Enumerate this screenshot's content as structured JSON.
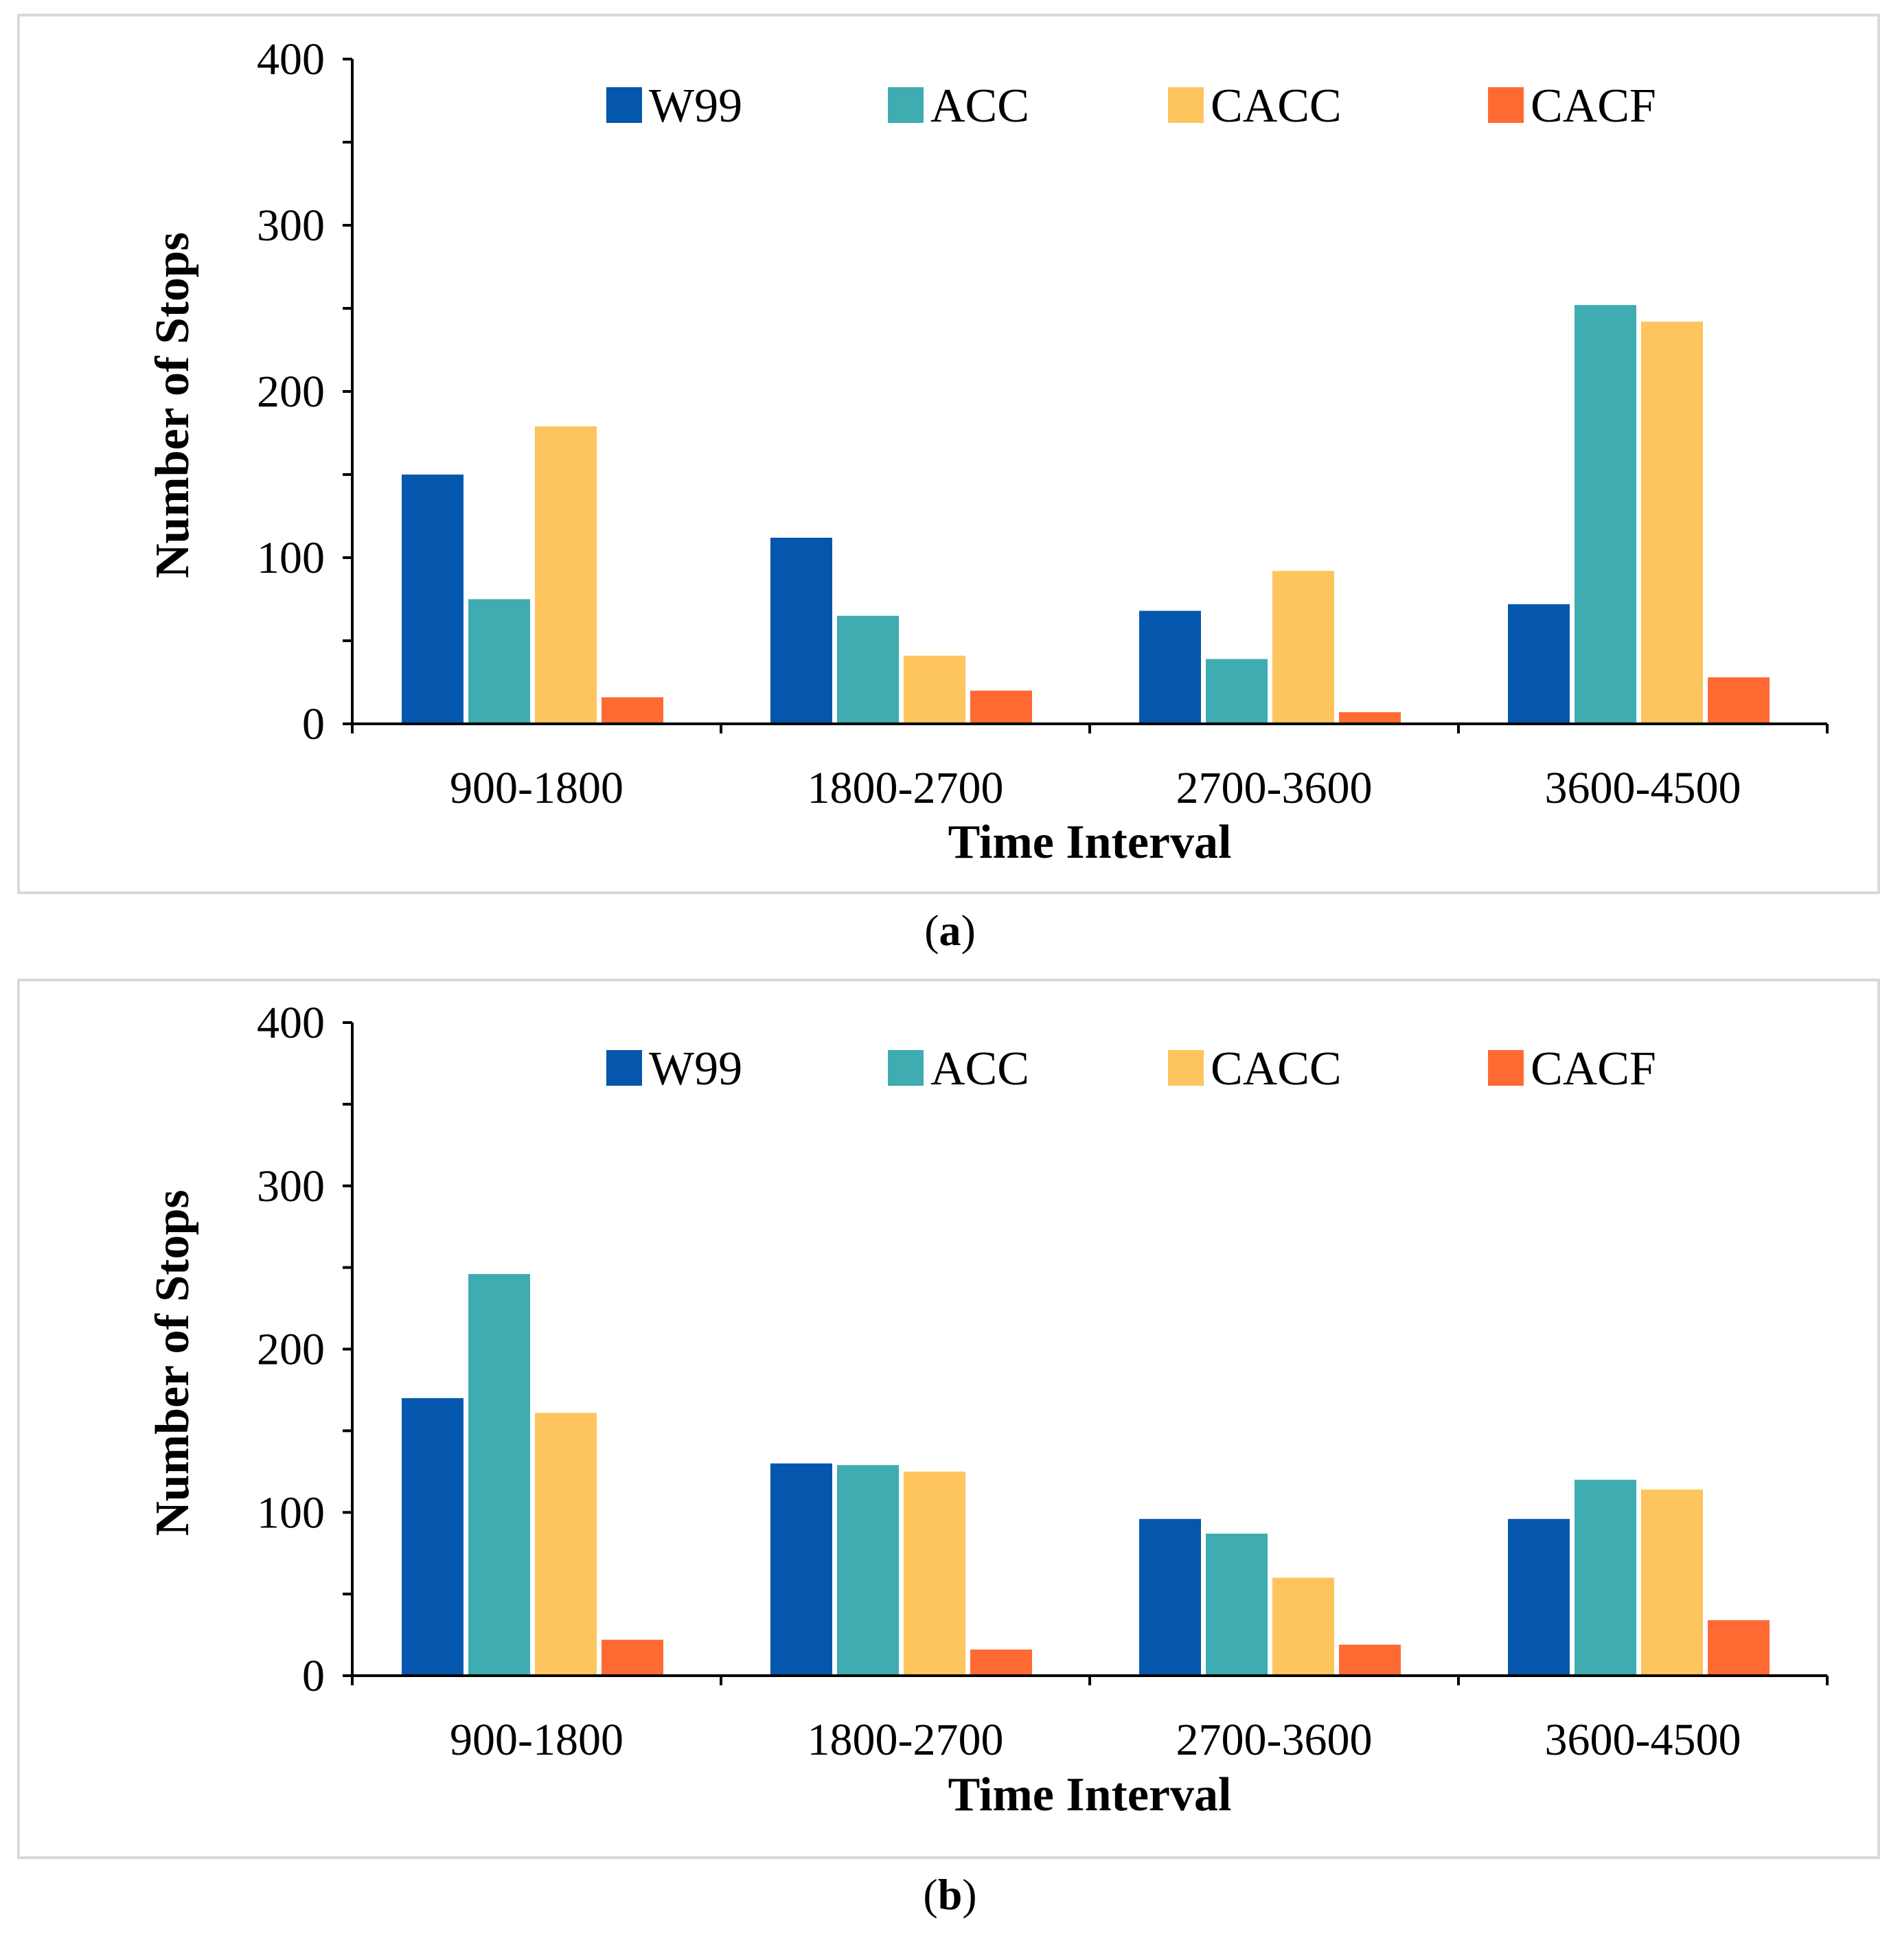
{
  "colors": {
    "W99": "#0457ac",
    "ACC": "#3facb1",
    "CACC": "#fec45e",
    "CACF": "#ff6a33",
    "axis": "#000000",
    "border": "#d9d9d9"
  },
  "chart_data": [
    {
      "type": "bar",
      "panel": "a",
      "caption": {
        "open": "(",
        "letter": "a",
        "close": ")"
      },
      "xlabel": "Time Interval",
      "ylabel": "Number of  Stops",
      "ylim": [
        0,
        400
      ],
      "yticks": [
        "0",
        "100",
        "200",
        "300",
        "400"
      ],
      "categories": [
        "900-1800",
        "1800-2700",
        "2700-3600",
        "3600-4500"
      ],
      "legend": [
        "W99",
        "ACC",
        "CACC",
        "CACF"
      ],
      "series": [
        {
          "name": "W99",
          "values": [
            150,
            112,
            68,
            72
          ]
        },
        {
          "name": "ACC",
          "values": [
            75,
            65,
            39,
            252
          ]
        },
        {
          "name": "CACC",
          "values": [
            179,
            41,
            92,
            242
          ]
        },
        {
          "name": "CACF",
          "values": [
            16,
            20,
            7,
            28
          ]
        }
      ]
    },
    {
      "type": "bar",
      "panel": "b",
      "caption": {
        "open": "(",
        "letter": "b",
        "close": ")"
      },
      "xlabel": "Time Interval",
      "ylabel": "Number of  Stops",
      "ylim": [
        0,
        400
      ],
      "yticks": [
        "0",
        "100",
        "200",
        "300",
        "400"
      ],
      "categories": [
        "900-1800",
        "1800-2700",
        "2700-3600",
        "3600-4500"
      ],
      "legend": [
        "W99",
        "ACC",
        "CACC",
        "CACF"
      ],
      "series": [
        {
          "name": "W99",
          "values": [
            170,
            130,
            96,
            96
          ]
        },
        {
          "name": "ACC",
          "values": [
            246,
            129,
            87,
            120
          ]
        },
        {
          "name": "CACC",
          "values": [
            161,
            125,
            60,
            114
          ]
        },
        {
          "name": "CACF",
          "values": [
            22,
            16,
            19,
            34
          ]
        }
      ]
    }
  ]
}
